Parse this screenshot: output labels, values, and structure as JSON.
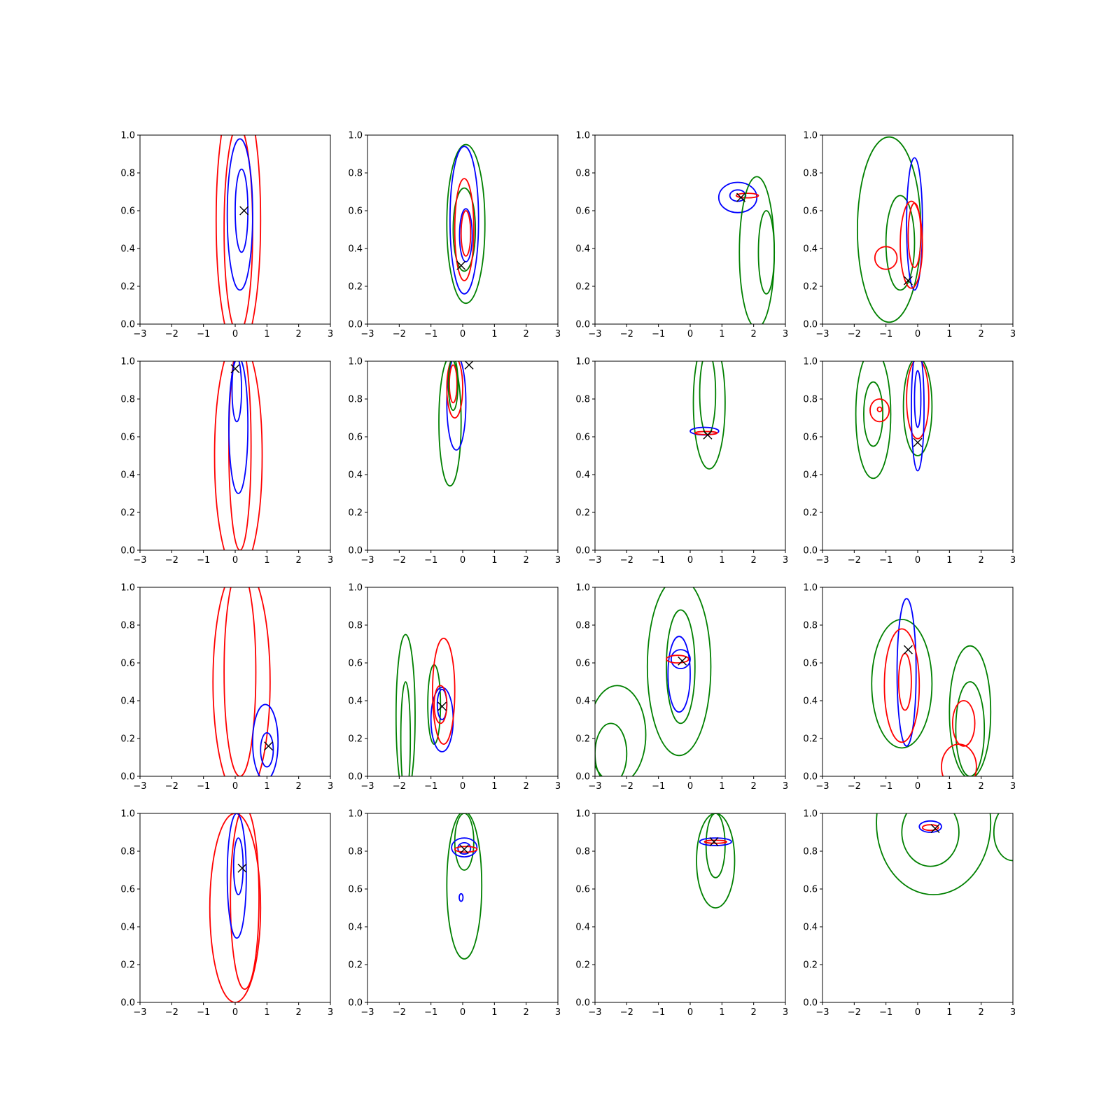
{
  "chart_data": {
    "type": "contour",
    "layout": "4x4 grid of subplots",
    "colors": {
      "red": "#ff0000",
      "blue": "#0000ff",
      "green": "#008000",
      "marker": "#000000"
    },
    "xlim": [
      -3,
      3
    ],
    "ylim": [
      0,
      1
    ],
    "xticks": [
      "−3",
      "−2",
      "−1",
      "0",
      "1",
      "2",
      "3"
    ],
    "yticks": [
      "0.0",
      "0.2",
      "0.4",
      "0.6",
      "0.8",
      "1.0"
    ],
    "marker": "x",
    "panels": [
      {
        "id": "r1c1",
        "marker": [
          0.28,
          0.6
        ],
        "contours": [
          {
            "color": "red",
            "cx": 0.1,
            "cy": 0.55,
            "rx": 0.7,
            "ry": 0.7
          },
          {
            "color": "red",
            "cx": 0.1,
            "cy": 0.5,
            "rx": 0.45,
            "ry": 0.55
          },
          {
            "color": "blue",
            "cx": 0.15,
            "cy": 0.58,
            "rx": 0.4,
            "ry": 0.4
          },
          {
            "color": "blue",
            "cx": 0.2,
            "cy": 0.6,
            "rx": 0.2,
            "ry": 0.22
          }
        ]
      },
      {
        "id": "r1c2",
        "marker": [
          -0.05,
          0.31
        ],
        "contours": [
          {
            "color": "green",
            "cx": 0.1,
            "cy": 0.53,
            "rx": 0.6,
            "ry": 0.42
          },
          {
            "color": "blue",
            "cx": 0.05,
            "cy": 0.55,
            "rx": 0.45,
            "ry": 0.39
          },
          {
            "color": "green",
            "cx": 0.05,
            "cy": 0.5,
            "rx": 0.35,
            "ry": 0.22
          },
          {
            "color": "red",
            "cx": 0.05,
            "cy": 0.5,
            "rx": 0.3,
            "ry": 0.27
          },
          {
            "color": "blue",
            "cx": 0.1,
            "cy": 0.47,
            "rx": 0.2,
            "ry": 0.14
          },
          {
            "color": "red",
            "cx": 0.1,
            "cy": 0.48,
            "rx": 0.15,
            "ry": 0.12
          }
        ]
      },
      {
        "id": "r1c3",
        "marker": [
          1.6,
          0.67
        ],
        "contours": [
          {
            "color": "blue",
            "cx": 1.5,
            "cy": 0.67,
            "rx": 0.6,
            "ry": 0.08
          },
          {
            "color": "blue",
            "cx": 1.5,
            "cy": 0.68,
            "rx": 0.25,
            "ry": 0.03
          },
          {
            "color": "red",
            "cx": 1.8,
            "cy": 0.68,
            "rx": 0.35,
            "ry": 0.012
          },
          {
            "color": "green",
            "cx": 2.1,
            "cy": 0.38,
            "rx": 0.55,
            "ry": 0.4
          },
          {
            "color": "green",
            "cx": 2.4,
            "cy": 0.38,
            "rx": 0.25,
            "ry": 0.22
          }
        ]
      },
      {
        "id": "r1c4",
        "marker": [
          -0.3,
          0.23
        ],
        "contours": [
          {
            "color": "green",
            "cx": -0.9,
            "cy": 0.5,
            "rx": 1.0,
            "ry": 0.49
          },
          {
            "color": "green",
            "cx": -0.55,
            "cy": 0.43,
            "rx": 0.45,
            "ry": 0.25
          },
          {
            "color": "blue",
            "cx": -0.1,
            "cy": 0.53,
            "rx": 0.25,
            "ry": 0.35
          },
          {
            "color": "red",
            "cx": -0.2,
            "cy": 0.42,
            "rx": 0.35,
            "ry": 0.23
          },
          {
            "color": "red",
            "cx": -1.0,
            "cy": 0.35,
            "rx": 0.35,
            "ry": 0.06
          },
          {
            "color": "red",
            "cx": -0.1,
            "cy": 0.47,
            "rx": 0.2,
            "ry": 0.17
          }
        ]
      },
      {
        "id": "r2c1",
        "marker": [
          0.0,
          0.96
        ],
        "contours": [
          {
            "color": "red",
            "cx": 0.1,
            "cy": 0.5,
            "rx": 0.75,
            "ry": 0.62
          },
          {
            "color": "red",
            "cx": 0.15,
            "cy": 0.55,
            "rx": 0.35,
            "ry": 0.55
          },
          {
            "color": "blue",
            "cx": 0.1,
            "cy": 0.66,
            "rx": 0.3,
            "ry": 0.36
          },
          {
            "color": "blue",
            "cx": 0.05,
            "cy": 0.85,
            "rx": 0.15,
            "ry": 0.17
          }
        ]
      },
      {
        "id": "r2c2",
        "marker": [
          0.2,
          0.98
        ],
        "contours": [
          {
            "color": "green",
            "cx": -0.4,
            "cy": 0.68,
            "rx": 0.35,
            "ry": 0.34
          },
          {
            "color": "blue",
            "cx": -0.2,
            "cy": 0.78,
            "rx": 0.3,
            "ry": 0.25
          },
          {
            "color": "red",
            "cx": -0.25,
            "cy": 0.86,
            "rx": 0.25,
            "ry": 0.16
          },
          {
            "color": "red",
            "cx": -0.3,
            "cy": 0.88,
            "rx": 0.12,
            "ry": 0.1
          },
          {
            "color": "green",
            "cx": -0.3,
            "cy": 0.88,
            "rx": 0.15,
            "ry": 0.14
          }
        ]
      },
      {
        "id": "r2c3",
        "marker": [
          0.55,
          0.61
        ],
        "contours": [
          {
            "color": "green",
            "cx": 0.6,
            "cy": 0.78,
            "rx": 0.5,
            "ry": 0.35
          },
          {
            "color": "green",
            "cx": 0.55,
            "cy": 0.83,
            "rx": 0.25,
            "ry": 0.22
          },
          {
            "color": "blue",
            "cx": 0.45,
            "cy": 0.63,
            "rx": 0.45,
            "ry": 0.02
          },
          {
            "color": "red",
            "cx": 0.5,
            "cy": 0.62,
            "rx": 0.35,
            "ry": 0.008
          }
        ]
      },
      {
        "id": "r2c4",
        "marker": [
          0.0,
          0.57
        ],
        "contours": [
          {
            "color": "green",
            "cx": -1.4,
            "cy": 0.72,
            "rx": 0.55,
            "ry": 0.34
          },
          {
            "color": "green",
            "cx": -1.4,
            "cy": 0.72,
            "rx": 0.3,
            "ry": 0.17
          },
          {
            "color": "green",
            "cx": 0.0,
            "cy": 0.76,
            "rx": 0.45,
            "ry": 0.26
          },
          {
            "color": "red",
            "cx": 0.0,
            "cy": 0.8,
            "rx": 0.35,
            "ry": 0.21
          },
          {
            "color": "red",
            "cx": -1.2,
            "cy": 0.74,
            "rx": 0.3,
            "ry": 0.06
          },
          {
            "color": "red",
            "cx": -1.2,
            "cy": 0.745,
            "rx": 0.07,
            "ry": 0.012
          },
          {
            "color": "blue",
            "cx": 0.0,
            "cy": 0.75,
            "rx": 0.2,
            "ry": 0.33
          },
          {
            "color": "blue",
            "cx": 0.0,
            "cy": 0.8,
            "rx": 0.1,
            "ry": 0.15
          }
        ]
      },
      {
        "id": "r3c1",
        "marker": [
          1.05,
          0.16
        ],
        "contours": [
          {
            "color": "red",
            "cx": 0.2,
            "cy": 0.5,
            "rx": 0.9,
            "ry": 0.62
          },
          {
            "color": "red",
            "cx": 0.15,
            "cy": 0.55,
            "rx": 0.5,
            "ry": 0.55
          },
          {
            "color": "blue",
            "cx": 0.95,
            "cy": 0.18,
            "rx": 0.4,
            "ry": 0.2
          },
          {
            "color": "blue",
            "cx": 1.0,
            "cy": 0.14,
            "rx": 0.2,
            "ry": 0.09
          }
        ]
      },
      {
        "id": "r3c2",
        "marker": [
          -0.65,
          0.37
        ],
        "contours": [
          {
            "color": "green",
            "cx": -1.8,
            "cy": 0.32,
            "rx": 0.3,
            "ry": 0.43
          },
          {
            "color": "green",
            "cx": -1.8,
            "cy": 0.2,
            "rx": 0.15,
            "ry": 0.3
          },
          {
            "color": "green",
            "cx": -0.9,
            "cy": 0.38,
            "rx": 0.2,
            "ry": 0.21
          },
          {
            "color": "blue",
            "cx": -0.65,
            "cy": 0.3,
            "rx": 0.35,
            "ry": 0.17
          },
          {
            "color": "red",
            "cx": -0.6,
            "cy": 0.45,
            "rx": 0.35,
            "ry": 0.28
          },
          {
            "color": "blue",
            "cx": -0.65,
            "cy": 0.38,
            "rx": 0.15,
            "ry": 0.08
          },
          {
            "color": "red",
            "cx": -0.7,
            "cy": 0.38,
            "rx": 0.2,
            "ry": 0.1
          }
        ]
      },
      {
        "id": "r3c3",
        "marker": [
          -0.25,
          0.61
        ],
        "contours": [
          {
            "color": "green",
            "cx": -2.3,
            "cy": 0.22,
            "rx": 0.9,
            "ry": 0.26
          },
          {
            "color": "green",
            "cx": -2.5,
            "cy": 0.12,
            "rx": 0.5,
            "ry": 0.16
          },
          {
            "color": "green",
            "cx": -0.35,
            "cy": 0.58,
            "rx": 1.0,
            "ry": 0.47
          },
          {
            "color": "green",
            "cx": -0.3,
            "cy": 0.58,
            "rx": 0.45,
            "ry": 0.3
          },
          {
            "color": "blue",
            "cx": -0.35,
            "cy": 0.54,
            "rx": 0.35,
            "ry": 0.2
          },
          {
            "color": "blue",
            "cx": -0.3,
            "cy": 0.62,
            "rx": 0.3,
            "ry": 0.05
          },
          {
            "color": "red",
            "cx": -0.4,
            "cy": 0.62,
            "rx": 0.35,
            "ry": 0.02
          }
        ]
      },
      {
        "id": "r3c4",
        "marker": [
          -0.3,
          0.67
        ],
        "contours": [
          {
            "color": "green",
            "cx": -0.5,
            "cy": 0.49,
            "rx": 0.95,
            "ry": 0.34
          },
          {
            "color": "green",
            "cx": 1.65,
            "cy": 0.34,
            "rx": 0.65,
            "ry": 0.35
          },
          {
            "color": "green",
            "cx": 1.65,
            "cy": 0.25,
            "rx": 0.45,
            "ry": 0.25
          },
          {
            "color": "blue",
            "cx": -0.35,
            "cy": 0.55,
            "rx": 0.3,
            "ry": 0.39
          },
          {
            "color": "red",
            "cx": -0.5,
            "cy": 0.48,
            "rx": 0.55,
            "ry": 0.3
          },
          {
            "color": "red",
            "cx": 1.45,
            "cy": 0.28,
            "rx": 0.35,
            "ry": 0.12
          },
          {
            "color": "red",
            "cx": 1.3,
            "cy": 0.05,
            "rx": 0.55,
            "ry": 0.12
          },
          {
            "color": "red",
            "cx": -0.4,
            "cy": 0.5,
            "rx": 0.2,
            "ry": 0.15
          }
        ]
      },
      {
        "id": "r4c1",
        "marker": [
          0.22,
          0.71
        ],
        "contours": [
          {
            "color": "red",
            "cx": 0.0,
            "cy": 0.5,
            "rx": 0.8,
            "ry": 0.5
          },
          {
            "color": "red",
            "cx": 0.3,
            "cy": 0.55,
            "rx": 0.45,
            "ry": 0.48
          },
          {
            "color": "blue",
            "cx": 0.05,
            "cy": 0.67,
            "rx": 0.3,
            "ry": 0.33
          },
          {
            "color": "blue",
            "cx": 0.1,
            "cy": 0.72,
            "rx": 0.15,
            "ry": 0.15
          }
        ]
      },
      {
        "id": "r4c2",
        "marker": [
          0.05,
          0.81
        ],
        "contours": [
          {
            "color": "green",
            "cx": 0.05,
            "cy": 0.62,
            "rx": 0.55,
            "ry": 0.39
          },
          {
            "color": "green",
            "cx": 0.05,
            "cy": 0.85,
            "rx": 0.3,
            "ry": 0.15
          },
          {
            "color": "blue",
            "cx": 0.05,
            "cy": 0.82,
            "rx": 0.4,
            "ry": 0.05
          },
          {
            "color": "blue",
            "cx": 0.05,
            "cy": 0.815,
            "rx": 0.2,
            "ry": 0.03
          },
          {
            "color": "red",
            "cx": 0.1,
            "cy": 0.81,
            "rx": 0.35,
            "ry": 0.015
          },
          {
            "color": "blue",
            "cx": -0.05,
            "cy": 0.555,
            "rx": 0.06,
            "ry": 0.02
          }
        ]
      },
      {
        "id": "r4c3",
        "marker": [
          0.75,
          0.85
        ],
        "contours": [
          {
            "color": "green",
            "cx": 0.8,
            "cy": 0.75,
            "rx": 0.6,
            "ry": 0.25
          },
          {
            "color": "green",
            "cx": 0.8,
            "cy": 0.83,
            "rx": 0.3,
            "ry": 0.17
          },
          {
            "color": "blue",
            "cx": 0.8,
            "cy": 0.85,
            "rx": 0.5,
            "ry": 0.02
          },
          {
            "color": "red",
            "cx": 0.8,
            "cy": 0.85,
            "rx": 0.35,
            "ry": 0.008
          }
        ]
      },
      {
        "id": "r4c4",
        "marker": [
          0.55,
          0.92
        ],
        "contours": [
          {
            "color": "green",
            "cx": 0.5,
            "cy": 0.95,
            "rx": 1.8,
            "ry": 0.38
          },
          {
            "color": "green",
            "cx": 0.4,
            "cy": 0.9,
            "rx": 0.9,
            "ry": 0.18
          },
          {
            "color": "green",
            "cx": 3.0,
            "cy": 0.9,
            "rx": 0.6,
            "ry": 0.15
          },
          {
            "color": "blue",
            "cx": 0.4,
            "cy": 0.93,
            "rx": 0.35,
            "ry": 0.03
          },
          {
            "color": "red",
            "cx": 0.4,
            "cy": 0.925,
            "rx": 0.25,
            "ry": 0.015
          }
        ]
      }
    ]
  }
}
